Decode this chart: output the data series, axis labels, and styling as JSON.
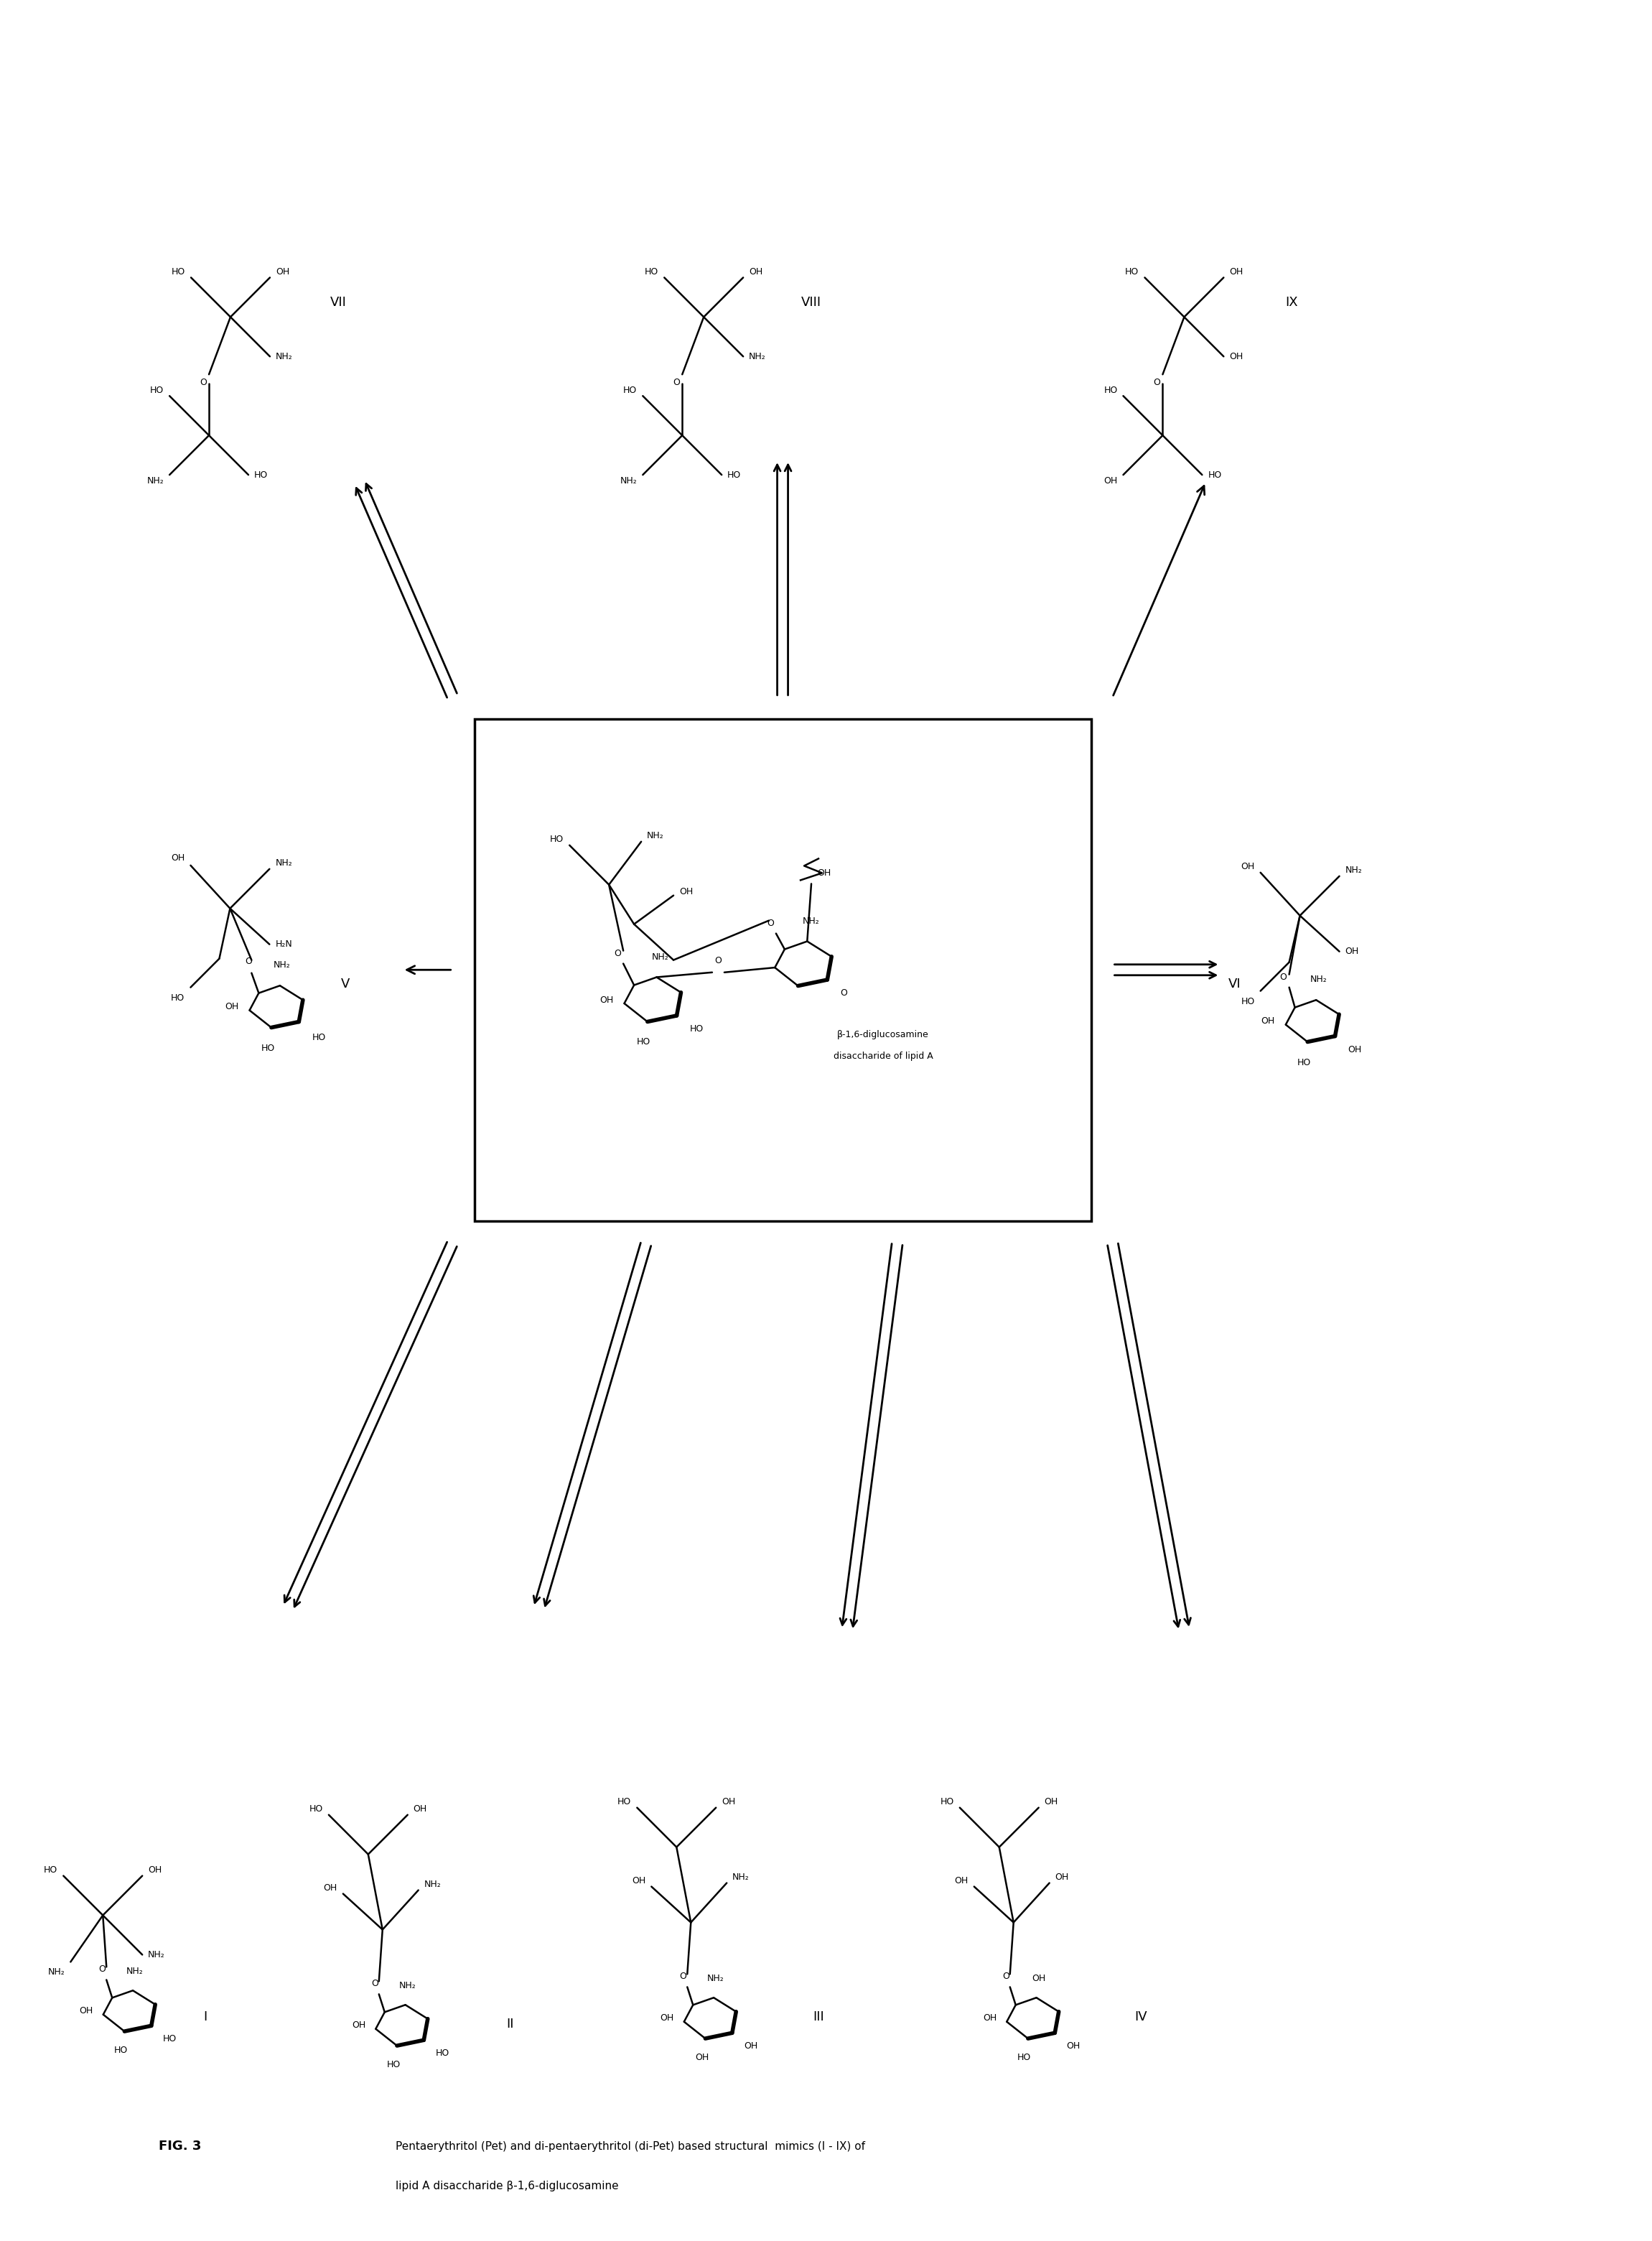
{
  "title": "FIG. 3",
  "caption1": "Pentaerythritol (Pet) and di-pentaerythritol (di-Pet) based structural  mimics (I - IX) of",
  "caption2": "lipid A disaccharide β-1,6-diglucosamine",
  "bg": "#ffffff",
  "lw_thin": 1.8,
  "lw_bold": 4.0,
  "fs_label": 11,
  "fs_chem": 9,
  "fs_roman": 13,
  "fig_w": 23.01,
  "fig_h": 31.2
}
